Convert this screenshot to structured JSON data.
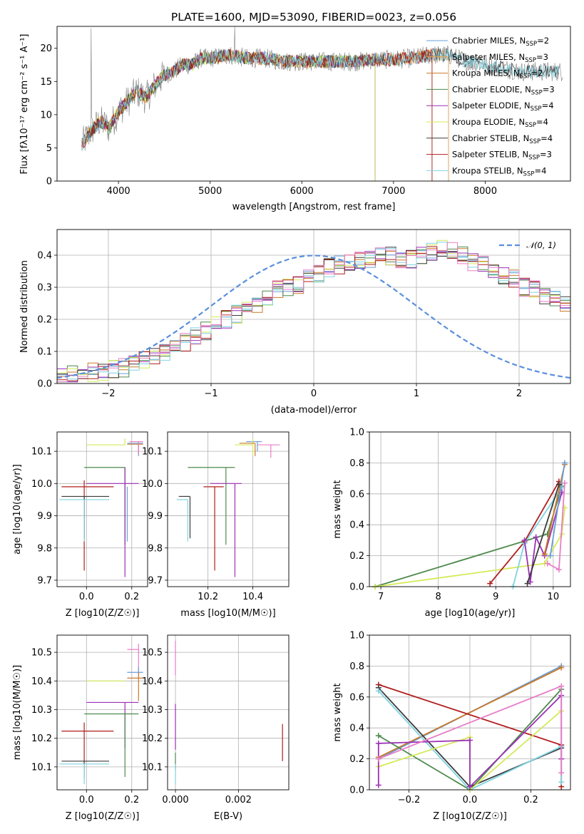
{
  "figure": {
    "title": "PLATE=1600, MJD=53090, FIBERID=0023, z=0.056"
  },
  "colors": {
    "Chabrier MILES": "#6a9fd8",
    "Salpeter MILES": "#f2a14a",
    "Kroupa MILES": "#c97a2a",
    "Chabrier ELODIE": "#4d8a4d",
    "Salpeter ELODIE": "#9b30b5",
    "Kroupa ELODIE": "#d4ea5a",
    "Chabrier STELIB": "#3b3b3b",
    "Salpeter STELIB": "#b01e1e",
    "Kroupa STELIB": "#7fd3e0",
    "Data": "#808080",
    "Pink": "#e87ec8"
  },
  "chart_data": [
    {
      "type": "line",
      "panel": "spectrum",
      "title": "PLATE=1600, MJD=53090, FIBERID=0023, z=0.056",
      "xlabel": "wavelength [Angstrom, rest frame]",
      "ylabel": "Flux [fλ10⁻¹⁷ erg cm⁻² s⁻¹ A⁻¹]",
      "xlim": [
        3330,
        8930
      ],
      "ylim": [
        0,
        23.3
      ],
      "xticks": [
        4000,
        5000,
        6000,
        7000,
        8000
      ],
      "yticks": [
        0,
        5,
        10,
        15,
        20
      ],
      "legend_position": "top-right",
      "envelope": {
        "x": [
          3600,
          3700,
          3800,
          3900,
          4000,
          4100,
          4200,
          4300,
          4400,
          4500,
          4600,
          4700,
          4800,
          4900,
          5000,
          5200,
          5400,
          5600,
          5800,
          6000,
          6200,
          6400,
          6600,
          6800,
          7000,
          7200,
          7400,
          7600,
          7800,
          8000,
          8200,
          8400,
          8600,
          8800
        ],
        "y": [
          5.5,
          7.5,
          9.0,
          8.0,
          10.5,
          12.0,
          13.5,
          12.5,
          14.5,
          16.0,
          16.5,
          17.5,
          17.5,
          18.5,
          18.5,
          19.0,
          18.5,
          18.5,
          18.0,
          18.0,
          18.0,
          18.0,
          18.0,
          18.3,
          18.3,
          18.5,
          19.0,
          19.0,
          18.0,
          17.5,
          17.0,
          16.5,
          16.5,
          16.5
        ]
      },
      "series": [
        {
          "name": "Chabrier MILES, N_SSP=2",
          "label": "Chabrier MILES, N",
          "sub": "SSP",
          "suffix": "=2"
        },
        {
          "name": "Salpeter MILES, N_SSP=3",
          "label": "Salpeter MILES, N",
          "sub": "SSP",
          "suffix": "=3"
        },
        {
          "name": "Kroupa MILES, N_SSP=2",
          "label": "Kroupa MILES, N",
          "sub": "SSP",
          "suffix": "=2"
        },
        {
          "name": "Chabrier ELODIE, N_SSP=3",
          "label": "Chabrier ELODIE, N",
          "sub": "SSP",
          "suffix": "=3"
        },
        {
          "name": "Salpeter ELODIE, N_SSP=4",
          "label": "Salpeter ELODIE, N",
          "sub": "SSP",
          "suffix": "=4"
        },
        {
          "name": "Kroupa ELODIE, N_SSP=4",
          "label": "Kroupa ELODIE, N",
          "sub": "SSP",
          "suffix": "=4"
        },
        {
          "name": "Chabrier STELIB, N_SSP=4",
          "label": "Chabrier STELIB, N",
          "sub": "SSP",
          "suffix": "=4"
        },
        {
          "name": "Salpeter STELIB, N_SSP=3",
          "label": "Salpeter STELIB, N",
          "sub": "SSP",
          "suffix": "=3"
        },
        {
          "name": "Kroupa STELIB, N_SSP=4",
          "label": "Kroupa STELIB, N",
          "sub": "SSP",
          "suffix": "=4"
        }
      ]
    },
    {
      "type": "bar",
      "panel": "residuals",
      "xlabel": "(data-model)/error",
      "ylabel": "Normed distribution",
      "xlim": [
        -2.5,
        2.5
      ],
      "ylim": [
        0,
        0.48
      ],
      "xticks": [
        -2,
        -1,
        0,
        1,
        2
      ],
      "yticks": [
        0.0,
        0.1,
        0.2,
        0.3,
        0.4
      ],
      "grid": true,
      "legend_position": "top-right",
      "reference_curve": {
        "name": "N(0,1)",
        "mean": 0,
        "sigma": 1,
        "style": "dashed"
      },
      "bin_width": 0.1,
      "bin_start": -2.5,
      "base_values": [
        0.02,
        0.025,
        0.03,
        0.035,
        0.04,
        0.045,
        0.05,
        0.06,
        0.075,
        0.085,
        0.1,
        0.115,
        0.13,
        0.15,
        0.165,
        0.18,
        0.2,
        0.215,
        0.235,
        0.25,
        0.27,
        0.29,
        0.3,
        0.31,
        0.33,
        0.345,
        0.36,
        0.37,
        0.375,
        0.385,
        0.39,
        0.4,
        0.395,
        0.39,
        0.385,
        0.4,
        0.41,
        0.42,
        0.415,
        0.4,
        0.38,
        0.37,
        0.36,
        0.34,
        0.33,
        0.3,
        0.29,
        0.27,
        0.26,
        0.25
      ]
    },
    {
      "type": "scatter",
      "panel": "age-vs-Z",
      "xlabel": "Z [log10(Z/Z☉)]",
      "ylabel": "age [log10(age/yr)]",
      "xlim": [
        -0.13,
        0.27
      ],
      "ylim": [
        9.68,
        10.16
      ],
      "xticks": [
        0.0,
        0.2
      ],
      "yticks": [
        9.7,
        9.8,
        9.9,
        10.0,
        10.1
      ],
      "grid": true
    },
    {
      "type": "scatter",
      "panel": "age-vs-mass",
      "xlabel": "mass [log10(M/M☉)]",
      "xlim": [
        10.02,
        10.56
      ],
      "ylim": [
        9.68,
        10.16
      ],
      "xticks": [
        10.2,
        10.4
      ],
      "yticks": [
        9.7,
        9.8,
        9.9,
        10.0,
        10.1
      ],
      "grid": true
    },
    {
      "type": "line",
      "panel": "mass-weight-vs-age",
      "xlabel": "age [log10(age/yr)]",
      "ylabel": "mass weight",
      "xlim": [
        6.8,
        10.3
      ],
      "ylim": [
        0,
        1.0
      ],
      "xticks": [
        7,
        8,
        9,
        10
      ],
      "yticks": [
        0.0,
        0.2,
        0.4,
        0.6,
        0.8,
        1.0
      ],
      "grid": true,
      "series": [
        {
          "color": "Chabrier ELODIE",
          "x": [
            6.9,
            9.9,
            10.15
          ],
          "y": [
            0.0,
            0.34,
            0.65
          ]
        },
        {
          "color": "Kroupa ELODIE",
          "x": [
            6.9,
            9.85,
            10.15,
            10.2
          ],
          "y": [
            0.0,
            0.15,
            0.34,
            0.51
          ]
        },
        {
          "color": "Salpeter STELIB",
          "x": [
            8.9,
            9.5,
            10.1
          ],
          "y": [
            0.02,
            0.29,
            0.68
          ]
        },
        {
          "color": "Kroupa STELIB",
          "x": [
            9.3,
            9.5,
            10.15
          ],
          "y": [
            0.0,
            0.28,
            0.64
          ]
        },
        {
          "color": "Salpeter ELODIE",
          "x": [
            9.5,
            9.6,
            9.7,
            9.85,
            10.15
          ],
          "y": [
            0.3,
            0.03,
            0.32,
            0.2,
            0.61
          ]
        },
        {
          "color": "Pink",
          "x": [
            9.9,
            10.1,
            10.2
          ],
          "y": [
            0.15,
            0.11,
            0.67
          ]
        },
        {
          "color": "Kroupa MILES",
          "x": [
            9.85,
            10.2
          ],
          "y": [
            0.21,
            0.79
          ]
        },
        {
          "color": "Chabrier MILES",
          "x": [
            9.95,
            10.2
          ],
          "y": [
            0.2,
            0.8
          ]
        },
        {
          "color": "Chabrier STELIB",
          "x": [
            9.55,
            10.1
          ],
          "y": [
            0.02,
            0.66
          ]
        }
      ]
    },
    {
      "type": "scatter",
      "panel": "mass-vs-Z",
      "xlabel": "Z [log10(Z/Z☉)]",
      "ylabel": "mass [log10(M/M☉)]",
      "xlim": [
        -0.13,
        0.27
      ],
      "ylim": [
        10.02,
        10.56
      ],
      "xticks": [
        0.0,
        0.2
      ],
      "yticks": [
        10.1,
        10.2,
        10.3,
        10.4,
        10.5
      ],
      "grid": true
    },
    {
      "type": "scatter",
      "panel": "mass-vs-EBV",
      "xlabel": "E(B-V)",
      "xlim": [
        -0.00025,
        0.0036
      ],
      "ylim": [
        10.02,
        10.56
      ],
      "xticks": [
        0.0,
        0.002
      ],
      "xticklabels": [
        "0.000",
        "0.002"
      ],
      "yticks": [
        10.1,
        10.2,
        10.3,
        10.4,
        10.5
      ],
      "grid": true
    },
    {
      "type": "line",
      "panel": "mass-weight-vs-Z",
      "xlabel": "Z [log10(Z/Z☉)]",
      "ylabel": "mass weight",
      "xlim": [
        -0.33,
        0.33
      ],
      "ylim": [
        0,
        1.0
      ],
      "xticks": [
        -0.2,
        0.0,
        0.2
      ],
      "yticks": [
        0.0,
        0.2,
        0.4,
        0.6,
        0.8,
        1.0
      ],
      "grid": true,
      "series": [
        {
          "color": "Chabrier MILES",
          "x": [
            -0.3,
            0.3
          ],
          "y": [
            0.2,
            0.8
          ]
        },
        {
          "color": "Kroupa MILES",
          "x": [
            -0.3,
            0.3
          ],
          "y": [
            0.21,
            0.79
          ]
        },
        {
          "color": "Salpeter STELIB",
          "x": [
            -0.3,
            0.3,
            0.3
          ],
          "y": [
            0.68,
            0.29,
            0.02
          ]
        },
        {
          "color": "Chabrier ELODIE",
          "x": [
            -0.3,
            0.0,
            0.3
          ],
          "y": [
            0.35,
            0.0,
            0.65
          ]
        },
        {
          "color": "Chabrier STELIB",
          "x": [
            -0.3,
            0.0,
            0.3
          ],
          "y": [
            0.66,
            0.02,
            0.27
          ]
        },
        {
          "color": "Kroupa STELIB",
          "x": [
            -0.3,
            0.0,
            0.3,
            0.3
          ],
          "y": [
            0.64,
            0.0,
            0.28,
            0.05
          ]
        },
        {
          "color": "Kroupa ELODIE",
          "x": [
            -0.3,
            0.0,
            0.0,
            0.3
          ],
          "y": [
            0.15,
            0.34,
            0.0,
            0.51
          ]
        },
        {
          "color": "Salpeter ELODIE",
          "x": [
            -0.3,
            -0.3,
            0.0,
            0.0,
            0.3,
            0.3
          ],
          "y": [
            0.03,
            0.3,
            0.32,
            0.02,
            0.61,
            0.2
          ]
        },
        {
          "color": "Pink",
          "x": [
            -0.3,
            0.3,
            0.3
          ],
          "y": [
            0.2,
            0.67,
            0.11
          ]
        }
      ]
    }
  ],
  "errorbars": {
    "age_vs_Z": [
      {
        "c": "Kroupa ELODIE",
        "x": 0.17,
        "xerr": [
          0.17,
          0.0
        ],
        "y": 10.12,
        "yerr": [
          0.0,
          0.02
        ]
      },
      {
        "c": "Chabrier MILES",
        "x": 0.23,
        "xerr": [
          0.05,
          0.02
        ],
        "y": 10.125,
        "yerr": [
          0.04,
          0.005
        ]
      },
      {
        "c": "Kroupa MILES",
        "x": 0.23,
        "xerr": [
          0.05,
          0.02
        ],
        "y": 10.122,
        "yerr": [
          0.03,
          0.005
        ]
      },
      {
        "c": "Pink",
        "x": 0.23,
        "xerr": [
          0.04,
          0.02
        ],
        "y": 10.13,
        "yerr": [
          0.04,
          0.0
        ]
      },
      {
        "c": "Chabrier ELODIE",
        "x": 0.17,
        "xerr": [
          0.18,
          0.0
        ],
        "y": 10.05,
        "yerr": [
          0.24,
          0.0
        ]
      },
      {
        "c": "Salpeter ELODIE",
        "x": 0.17,
        "xerr": [
          0.17,
          0.06
        ],
        "y": 10.0,
        "yerr": [
          0.29,
          0.05
        ]
      },
      {
        "c": "Salpeter STELIB",
        "x": -0.01,
        "xerr": [
          0.1,
          0.13
        ],
        "y": 9.99,
        "yerr": [
          0.26,
          0.02
        ]
      },
      {
        "c": "Chabrier STELIB",
        "x": -0.01,
        "xerr": [
          0.1,
          0.11
        ],
        "y": 9.96,
        "yerr": [
          0.13,
          0.0
        ]
      },
      {
        "c": "Kroupa STELIB",
        "x": -0.01,
        "xerr": [
          0.11,
          0.11
        ],
        "y": 9.95,
        "yerr": [
          0.13,
          0.0
        ]
      },
      {
        "c": "Chabrier MILES",
        "x": 0.18,
        "xerr": [
          0.0,
          0.0
        ],
        "y": 9.99,
        "yerr": [
          0.17,
          0.0
        ]
      }
    ],
    "age_vs_mass": [
      {
        "c": "Chabrier MILES",
        "x": 10.42,
        "xerr": [
          0.05,
          0.02
        ],
        "y": 10.13,
        "yerr": [
          0.03,
          0.0
        ]
      },
      {
        "c": "Kroupa ELODIE",
        "x": 10.4,
        "xerr": [
          0.08,
          0.0
        ],
        "y": 10.12,
        "yerr": [
          0.03,
          0.02
        ]
      },
      {
        "c": "Kroupa MILES",
        "x": 10.41,
        "xerr": [
          0.07,
          0.0
        ],
        "y": 10.125,
        "yerr": [
          0.04,
          0.0
        ]
      },
      {
        "c": "Pink",
        "x": 10.48,
        "xerr": [
          0.06,
          0.04
        ],
        "y": 10.12,
        "yerr": [
          0.04,
          0.0
        ]
      },
      {
        "c": "Chabrier ELODIE",
        "x": 10.28,
        "xerr": [
          0.17,
          0.04
        ],
        "y": 10.05,
        "yerr": [
          0.24,
          0.0
        ]
      },
      {
        "c": "Salpeter ELODIE",
        "x": 10.32,
        "xerr": [
          0.11,
          0.03
        ],
        "y": 10.0,
        "yerr": [
          0.29,
          0.0
        ]
      },
      {
        "c": "Salpeter STELIB",
        "x": 10.23,
        "xerr": [
          0.05,
          0.04
        ],
        "y": 9.99,
        "yerr": [
          0.26,
          0.0
        ]
      },
      {
        "c": "Chabrier STELIB",
        "x": 10.12,
        "xerr": [
          0.05,
          0.0
        ],
        "y": 9.96,
        "yerr": [
          0.13,
          0.0
        ]
      },
      {
        "c": "Kroupa STELIB",
        "x": 10.11,
        "xerr": [
          0.05,
          0.0
        ],
        "y": 9.95,
        "yerr": [
          0.13,
          0.0
        ]
      }
    ],
    "mass_vs_Z": [
      {
        "c": "Pink",
        "x": 0.23,
        "xerr": [
          0.05,
          0.0
        ],
        "y": 10.51,
        "yerr": [
          0.09,
          0.02
        ]
      },
      {
        "c": "Chabrier MILES",
        "x": 0.23,
        "xerr": [
          0.05,
          0.02
        ],
        "y": 10.43,
        "yerr": [
          0.0,
          0.02
        ]
      },
      {
        "c": "Kroupa MILES",
        "x": 0.23,
        "xerr": [
          0.05,
          0.02
        ],
        "y": 10.41,
        "yerr": [
          0.08,
          0.02
        ]
      },
      {
        "c": "Kroupa ELODIE",
        "x": 0.17,
        "xerr": [
          0.17,
          0.0
        ],
        "y": 10.4,
        "yerr": [
          0.0,
          0.0
        ]
      },
      {
        "c": "Salpeter ELODIE",
        "x": 0.17,
        "xerr": [
          0.17,
          0.06
        ],
        "y": 10.325,
        "yerr": [
          0.16,
          0.0
        ]
      },
      {
        "c": "Chabrier ELODIE",
        "x": 0.17,
        "xerr": [
          0.18,
          0.06
        ],
        "y": 10.285,
        "yerr": [
          0.22,
          0.0
        ]
      },
      {
        "c": "Salpeter STELIB",
        "x": -0.01,
        "xerr": [
          0.1,
          0.13
        ],
        "y": 10.225,
        "yerr": [
          0.11,
          0.03
        ]
      },
      {
        "c": "Chabrier STELIB",
        "x": -0.01,
        "xerr": [
          0.1,
          0.11
        ],
        "y": 10.12,
        "yerr": [
          0.06,
          0.0
        ]
      },
      {
        "c": "Kroupa STELIB",
        "x": -0.01,
        "xerr": [
          0.11,
          0.11
        ],
        "y": 10.11,
        "yerr": [
          0.07,
          0.0
        ]
      }
    ],
    "mass_vs_EBV": [
      {
        "c": "Pink",
        "x": 0.0,
        "xerr": [
          0.0,
          0.0
        ],
        "y": 10.51,
        "yerr": [
          0.09,
          0.03
        ]
      },
      {
        "c": "Kroupa ELODIE",
        "x": 0.0,
        "xerr": [
          0.0,
          0.0
        ],
        "y": 10.4,
        "yerr": [
          0.0,
          0.0
        ]
      },
      {
        "c": "Salpeter ELODIE",
        "x": 0.0,
        "xerr": [
          0.0,
          0.0
        ],
        "y": 10.32,
        "yerr": [
          0.16,
          0.0
        ]
      },
      {
        "c": "Chabrier ELODIE",
        "x": 0.0,
        "xerr": [
          0.0,
          0.0
        ],
        "y": 10.15,
        "yerr": [
          0.06,
          0.0
        ]
      },
      {
        "c": "Kroupa STELIB",
        "x": 0.0,
        "xerr": [
          0.0,
          0.0
        ],
        "y": 10.11,
        "yerr": [
          0.07,
          0.0
        ]
      },
      {
        "c": "Salpeter STELIB",
        "x": 0.0034,
        "xerr": [
          0.0,
          0.0
        ],
        "y": 10.19,
        "yerr": [
          0.07,
          0.06
        ]
      }
    ]
  }
}
